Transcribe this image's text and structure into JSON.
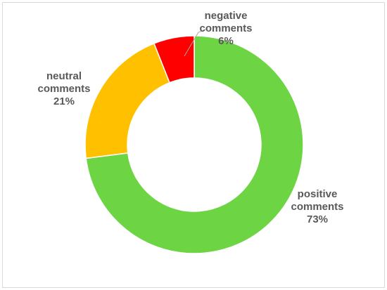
{
  "chart_data": {
    "type": "donut",
    "categories": [
      "positive comments",
      "neutral comments",
      "negative comments"
    ],
    "values": [
      73,
      21,
      6
    ],
    "value_labels": [
      "73%",
      "21%",
      "6%"
    ],
    "colors": [
      "#6dd444",
      "#ffc000",
      "#ff0000"
    ]
  }
}
